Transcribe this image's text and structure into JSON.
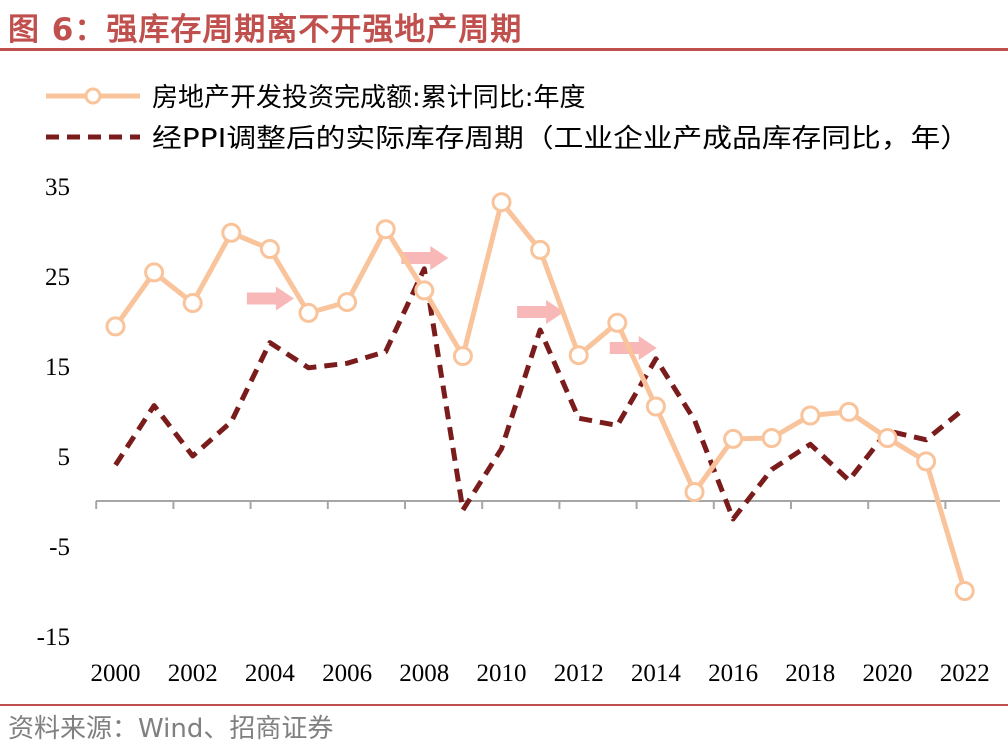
{
  "figure_title": "图 6：强库存周期离不开强地产周期",
  "source": "资料来源：Wind、招商证券",
  "colors": {
    "title": "#c0504d",
    "investment": "#f9c49b",
    "inventory": "#7b1c1c",
    "arrow": "#f8b4b4"
  },
  "chart_data": {
    "type": "line",
    "title": "",
    "xlabel": "",
    "ylabel": "",
    "x": [
      2000,
      2001,
      2002,
      2003,
      2004,
      2005,
      2006,
      2007,
      2008,
      2009,
      2010,
      2011,
      2012,
      2013,
      2014,
      2015,
      2016,
      2017,
      2018,
      2019,
      2020,
      2021,
      2022
    ],
    "xticks": [
      "2000",
      "2002",
      "2004",
      "2006",
      "2008",
      "2010",
      "2012",
      "2014",
      "2016",
      "2018",
      "2020",
      "2022"
    ],
    "yticks": [
      "35",
      "25",
      "15",
      "5",
      "-5",
      "-15"
    ],
    "ylim": [
      -15,
      35
    ],
    "legend_position": "top-left",
    "grid": false,
    "series": [
      {
        "name": "房地产开发投资完成额:累计同比:年度",
        "style": "solid-with-hollow-markers",
        "values": [
          19.4,
          25.4,
          22.0,
          29.8,
          28.0,
          20.9,
          22.1,
          30.2,
          23.4,
          16.1,
          33.2,
          27.9,
          16.2,
          19.8,
          10.5,
          1.0,
          6.9,
          7.0,
          9.5,
          9.9,
          7.0,
          4.4,
          -10.0
        ]
      },
      {
        "name": "经PPI调整后的实际库存周期（工业企业产成品库存同比，年）",
        "style": "dashed",
        "values": [
          4.0,
          10.6,
          5.0,
          8.8,
          17.6,
          14.8,
          15.3,
          16.6,
          25.8,
          -1.0,
          5.8,
          19.0,
          9.2,
          8.4,
          15.8,
          9.0,
          -2.0,
          3.5,
          6.3,
          2.3,
          7.8,
          6.8,
          10.3
        ]
      }
    ],
    "annotation_arrows_at_x": [
      2004,
      2008,
      2011,
      2013.4
    ]
  }
}
